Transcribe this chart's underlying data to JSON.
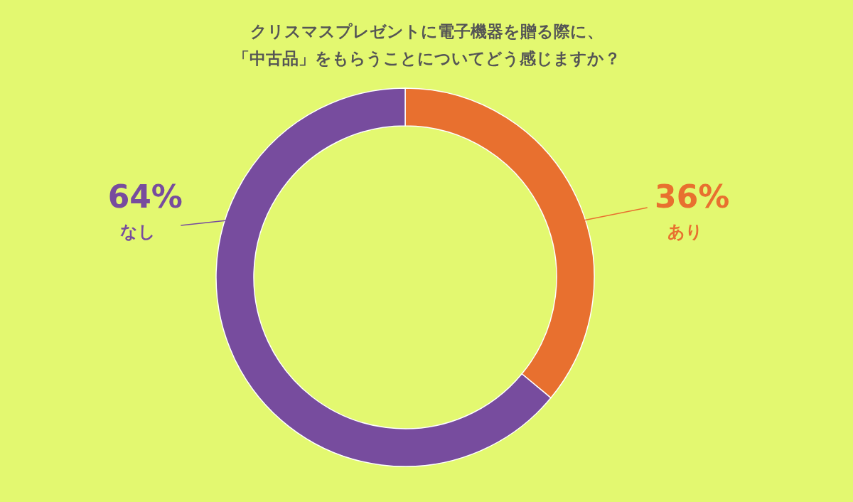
{
  "chart_data": {
    "type": "donut",
    "title": "クリスマスプレゼントに電子機器を贈る際に、「中古品」をもらうことについてどう感じますか？",
    "categories": [
      "あり",
      "なし"
    ],
    "values": [
      36,
      64
    ],
    "colors": [
      "#e8702f",
      "#774c9e"
    ],
    "value_labels": [
      "36%",
      "64%"
    ]
  }
}
